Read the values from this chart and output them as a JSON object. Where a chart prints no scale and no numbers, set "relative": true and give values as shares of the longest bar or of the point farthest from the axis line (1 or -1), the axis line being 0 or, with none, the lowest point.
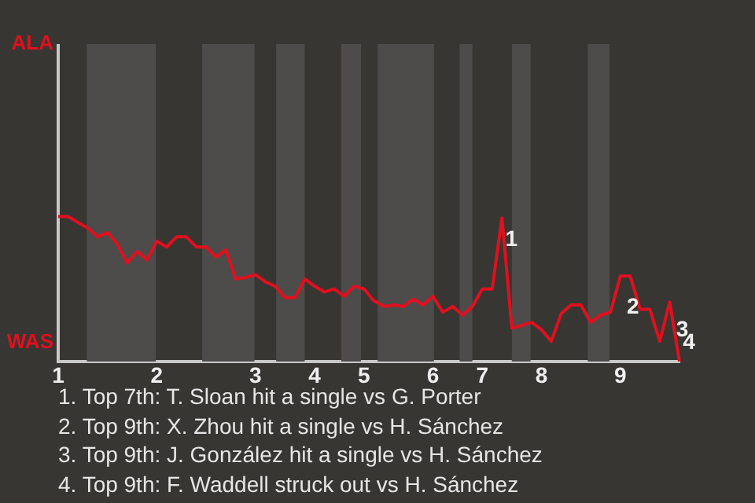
{
  "chart_data": {
    "type": "line",
    "relative": true,
    "categories": [
      "1",
      null,
      null,
      null,
      null,
      null,
      null,
      null,
      null,
      null,
      "2",
      null,
      null,
      null,
      null,
      null,
      null,
      null,
      null,
      null,
      "3",
      null,
      null,
      null,
      null,
      null,
      "4",
      null,
      null,
      null,
      null,
      "5",
      null,
      null,
      null,
      null,
      null,
      null,
      "6",
      null,
      null,
      null,
      null,
      "7",
      null,
      null,
      null,
      null,
      null,
      "8",
      null,
      null,
      null,
      null,
      null,
      null,
      null,
      "9",
      null,
      null,
      null,
      null,
      null,
      null
    ],
    "series": [
      {
        "color": "#e0101e",
        "values": [
          1,
          1,
          0.96,
          0.92,
          0.86,
          0.89,
          0.81,
          0.68,
          0.76,
          0.7,
          0.83,
          0.79,
          0.86,
          0.86,
          0.79,
          0.79,
          0.72,
          0.77,
          0.57,
          0.58,
          0.6,
          0.55,
          0.52,
          0.44,
          0.44,
          0.57,
          0.52,
          0.48,
          0.5,
          0.45,
          0.52,
          0.5,
          0.42,
          0.38,
          0.39,
          0.38,
          0.43,
          0.39,
          0.45,
          0.34,
          0.38,
          0.32,
          0.38,
          0.5,
          0.5,
          0.99,
          0.23,
          0.25,
          0.27,
          0.22,
          0.14,
          0.33,
          0.39,
          0.39,
          0.27,
          0.32,
          0.34,
          0.59,
          0.59,
          0.36,
          0.36,
          0.14,
          0.41,
          0
        ]
      }
    ],
    "legend": false,
    "annotations": [
      "ALA",
      "WAS",
      {
        "text": "1",
        "y": 0.99
      },
      {
        "text": "2",
        "y": 0.59
      },
      "3",
      "4",
      "1. Top 7th: T. Sloan hit a single vs G. Porter",
      "2. Top 9th: X. Zhou hit a single vs H. Sánchez",
      "3. Top 9th: J. González hit a single vs H. Sánchez",
      "4. Top 9th: F. Waddell struck out vs H. Sánchez"
    ]
  }
}
